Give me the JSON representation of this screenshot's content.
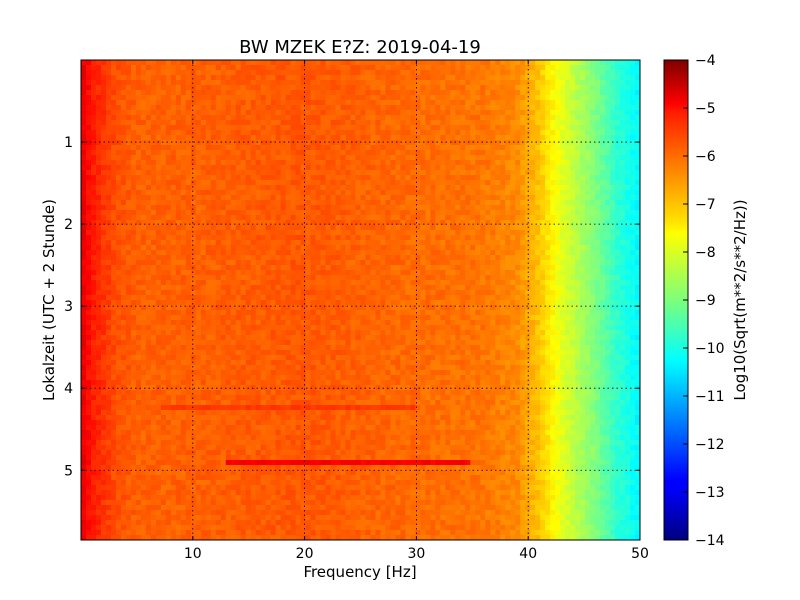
{
  "chart_data": {
    "type": "heatmap",
    "title": "BW MZEK E?Z: 2019-04-19",
    "xlabel": "Frequency [Hz]",
    "ylabel": "Lokalzeit (UTC + 2 Stunde)",
    "colorbar_label": "Log10(Sqrt(m**2/s**2/Hz))",
    "xlim": [
      0,
      50
    ],
    "ylim": [
      5.85,
      0
    ],
    "clim": [
      -14,
      -4
    ],
    "colormap": "jet",
    "grid": true,
    "x_ticks": [
      10,
      20,
      30,
      40,
      50
    ],
    "y_ticks": [
      1,
      2,
      3,
      4,
      5
    ],
    "colorbar_ticks": [
      -4,
      -5,
      -6,
      -7,
      -8,
      -9,
      -10,
      -11,
      -12,
      -13,
      -14
    ],
    "spectral_profile": {
      "frequency": [
        0,
        1,
        3,
        5,
        10,
        20,
        30,
        36,
        39,
        41,
        43,
        46,
        48,
        50
      ],
      "log10_amplitude": [
        -5.0,
        -5.5,
        -6.0,
        -6.2,
        -6.2,
        -6.1,
        -6.3,
        -6.4,
        -6.6,
        -7.2,
        -8.0,
        -9.0,
        -9.8,
        -10.3
      ]
    },
    "features": [
      {
        "time": 4.92,
        "freq_range": [
          13,
          35
        ],
        "log10_amplitude": -5.2
      },
      {
        "time": 4.22,
        "freq_range": [
          7,
          30
        ],
        "log10_amplitude": -5.8
      }
    ]
  }
}
